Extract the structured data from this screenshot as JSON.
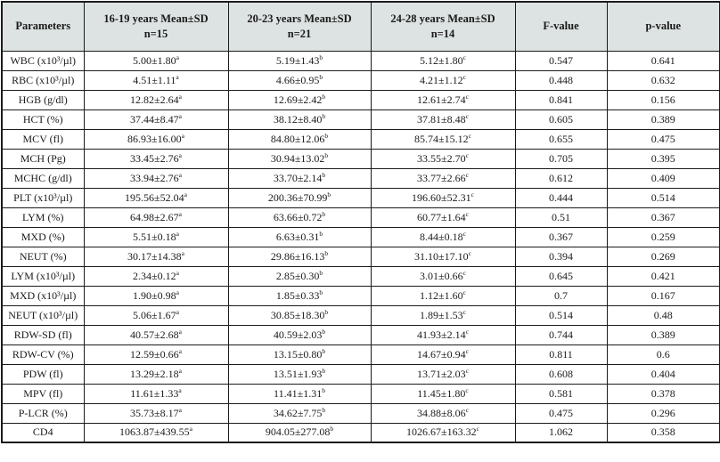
{
  "colors": {
    "header_bg": "#dde3e2",
    "border": "#1b1b1b",
    "text": "#1a1a1a"
  },
  "table": {
    "columns": [
      {
        "label": "Parameters",
        "sub": ""
      },
      {
        "label": "16-19 years Mean±SD",
        "sub": "n=15"
      },
      {
        "label": "20-23 years Mean±SD",
        "sub": "n=21"
      },
      {
        "label": "24-28 years Mean±SD",
        "sub": "n=14"
      },
      {
        "label": "F-value",
        "sub": ""
      },
      {
        "label": "p-value",
        "sub": ""
      }
    ],
    "rows": [
      {
        "param": "WBC (x10³/µl)",
        "v1": "5.00±1.80",
        "s1": "a",
        "v2": "5.19±1.43",
        "s2": "b",
        "v3": "5.12±1.80",
        "s3": "c",
        "f": "0.547",
        "p": "0.641"
      },
      {
        "param": "RBC (x10³/µl)",
        "v1": "4.51±1.11",
        "s1": "a",
        "v2": "4.66±0.95",
        "s2": "b",
        "v3": "4.21±1.12",
        "s3": "c",
        "f": "0.448",
        "p": "0.632"
      },
      {
        "param": "HGB (g/dl)",
        "v1": "12.82±2.64",
        "s1": "a",
        "v2": "12.69±2.42",
        "s2": "b",
        "v3": "12.61±2.74",
        "s3": "c",
        "f": "0.841",
        "p": "0.156"
      },
      {
        "param": "HCT (%)",
        "v1": "37.44±8.47",
        "s1": "a",
        "v2": "38.12±8.40",
        "s2": "b",
        "v3": "37.81±8.48",
        "s3": "c",
        "f": "0.605",
        "p": "0.389"
      },
      {
        "param": "MCV (fl)",
        "v1": "86.93±16.00",
        "s1": "a",
        "v2": "84.80±12.06",
        "s2": "b",
        "v3": "85.74±15.12",
        "s3": "c",
        "f": "0.655",
        "p": "0.475"
      },
      {
        "param": "MCH (Pg)",
        "v1": "33.45±2.76",
        "s1": "a",
        "v2": "30.94±13.02",
        "s2": "b",
        "v3": "33.55±2.70",
        "s3": "c",
        "f": "0.705",
        "p": "0.395"
      },
      {
        "param": "MCHC (g/dl)",
        "v1": "33.94±2.76",
        "s1": "a",
        "v2": "33.70±2.14",
        "s2": "b",
        "v3": "33.77±2.66",
        "s3": "c",
        "f": "0.612",
        "p": "0.409"
      },
      {
        "param": "PLT (x10³/µl)",
        "v1": "195.56±52.04",
        "s1": "a",
        "v2": "200.36±70.99",
        "s2": "b",
        "v3": "196.60±52.31",
        "s3": "c",
        "f": "0.444",
        "p": "0.514"
      },
      {
        "param": "LYM (%)",
        "v1": "64.98±2.67",
        "s1": "a",
        "v2": "63.66±0.72",
        "s2": "b",
        "v3": "60.77±1.64",
        "s3": "c",
        "f": "0.51",
        "p": "0.367"
      },
      {
        "param": "MXD (%)",
        "v1": "5.51±0.18",
        "s1": "a",
        "v2": "6.63±0.31",
        "s2": "b",
        "v3": "8.44±0.18",
        "s3": "c",
        "f": "0.367",
        "p": "0.259"
      },
      {
        "param": "NEUT (%)",
        "v1": "30.17±14.38",
        "s1": "a",
        "v2": "29.86±16.13",
        "s2": "b",
        "v3": "31.10±17.10",
        "s3": "c",
        "f": "0.394",
        "p": "0.269"
      },
      {
        "param": "LYM (x10³/µl)",
        "v1": "2.34±0.12",
        "s1": "a",
        "v2": "2.85±0.30",
        "s2": "b",
        "v3": "3.01±0.66",
        "s3": "c",
        "f": "0.645",
        "p": "0.421"
      },
      {
        "param": "MXD (x10³/µl)",
        "v1": "1.90±0.98",
        "s1": "a",
        "v2": "1.85±0.33",
        "s2": "b",
        "v3": "1.12±1.60",
        "s3": "c",
        "f": "0.7",
        "p": "0.167"
      },
      {
        "param": "NEUT (x10³/µl)",
        "v1": "5.06±1.67",
        "s1": "a",
        "v2": "30.85±18.30",
        "s2": "b",
        "v3": "1.89±1.53",
        "s3": "c",
        "f": "0.514",
        "p": "0.48"
      },
      {
        "param": "RDW-SD (fl)",
        "v1": "40.57±2.68",
        "s1": "a",
        "v2": "40.59±2.03",
        "s2": "b",
        "v3": "41.93±2.14",
        "s3": "c",
        "f": "0.744",
        "p": "0.389"
      },
      {
        "param": "RDW-CV (%)",
        "v1": "12.59±0.66",
        "s1": "a",
        "v2": "13.15±0.80",
        "s2": "b",
        "v3": "14.67±0.94",
        "s3": "c",
        "f": "0.811",
        "p": "0.6"
      },
      {
        "param": "PDW (fl)",
        "v1": "13.29±2.18",
        "s1": "a",
        "v2": "13.51±1.93",
        "s2": "b",
        "v3": "13.71±2.03",
        "s3": "c",
        "f": "0.608",
        "p": "0.404"
      },
      {
        "param": "MPV (fl)",
        "v1": "11.61±1.33",
        "s1": "a",
        "v2": "11.41±1.31",
        "s2": "b",
        "v3": "11.45±1.80",
        "s3": "c",
        "f": "0.581",
        "p": "0.378"
      },
      {
        "param": "P-LCR (%)",
        "v1": "35.73±8.17",
        "s1": "a",
        "v2": "34.62±7.75",
        "s2": "b",
        "v3": "34.88±8.06",
        "s3": "c",
        "f": "0.475",
        "p": "0.296"
      },
      {
        "param": "CD4",
        "v1": "1063.87±439.55",
        "s1": "a",
        "v2": "904.05±277.08",
        "s2": "b",
        "v3": "1026.67±163.32",
        "s3": "c",
        "f": "1.062",
        "p": "0.358"
      }
    ]
  }
}
